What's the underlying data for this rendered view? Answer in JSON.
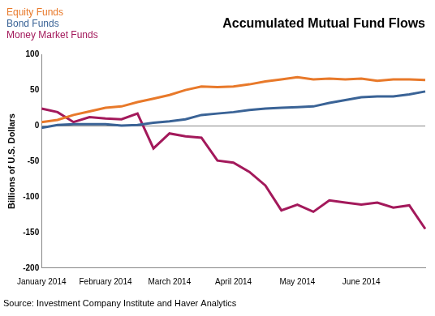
{
  "chart_data": {
    "type": "line",
    "title": "Accumulated Mutual Fund Flows",
    "y_label": "Billions of U.S. Dollars",
    "source": "Source: Investment Company Institute and Haver Analytics",
    "categories": [
      "January 2014",
      null,
      null,
      null,
      "February 2014",
      null,
      null,
      null,
      "March 2014",
      null,
      null,
      null,
      "April 2014",
      null,
      null,
      null,
      "May 2014",
      null,
      null,
      null,
      "June 2014",
      null,
      null,
      null,
      null
    ],
    "series": [
      {
        "name": "Equity Funds",
        "color": "#e8792a",
        "values": [
          5,
          8,
          15,
          20,
          25,
          27,
          33,
          38,
          43,
          50,
          55,
          54,
          55,
          58,
          62,
          65,
          68,
          65,
          66,
          65,
          66,
          63,
          65,
          65,
          64
        ]
      },
      {
        "name": "Bond Funds",
        "color": "#3a6396",
        "values": [
          -3,
          1,
          2,
          2,
          2,
          0,
          1,
          4,
          6,
          9,
          15,
          17,
          19,
          22,
          24,
          25,
          26,
          27,
          32,
          36,
          40,
          41,
          41,
          44,
          48
        ]
      },
      {
        "name": "Money Market Funds",
        "color": "#a3195b",
        "values": [
          24,
          19,
          5,
          12,
          10,
          9,
          17,
          -32,
          -11,
          -15,
          -17,
          -49,
          -52,
          -65,
          -84,
          -119,
          -111,
          -121,
          -105,
          -108,
          -111,
          -108,
          -115,
          -112,
          -145
        ]
      }
    ],
    "ylim": [
      -200,
      100
    ],
    "yticks": [
      -200,
      -150,
      -100,
      -50,
      0,
      50,
      100
    ],
    "grid": false,
    "legend": "top-left"
  }
}
